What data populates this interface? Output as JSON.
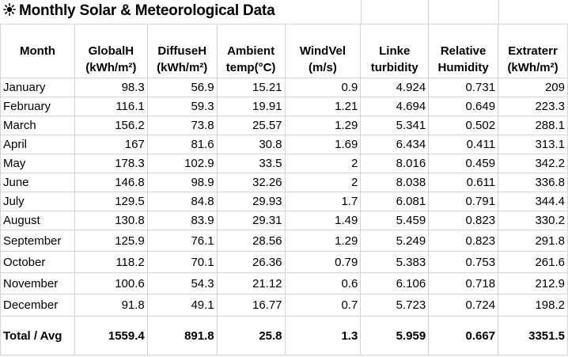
{
  "title": {
    "icon": "sun-icon",
    "text": "Monthly Solar & Meteorological Data"
  },
  "columns": [
    {
      "line1": "Month",
      "line2": ""
    },
    {
      "line1": "GlobalH",
      "line2": "(kWh/m²)"
    },
    {
      "line1": "DiffuseH",
      "line2": "(kWh/m²)"
    },
    {
      "line1": "Ambient",
      "line2": "temp(°C)"
    },
    {
      "line1": "WindVel",
      "line2": "(m/s)"
    },
    {
      "line1": "Linke",
      "line2": "turbidity"
    },
    {
      "line1": "Relative",
      "line2": "Humidity"
    },
    {
      "line1": "Extraterr",
      "line2": "(kWh/m²)"
    }
  ],
  "rows": [
    [
      "January",
      "98.3",
      "56.9",
      "15.21",
      "0.9",
      "4.924",
      "0.731",
      "209"
    ],
    [
      "February",
      "116.1",
      "59.3",
      "19.91",
      "1.21",
      "4.694",
      "0.649",
      "223.3"
    ],
    [
      "March",
      "156.2",
      "73.8",
      "25.57",
      "1.29",
      "5.341",
      "0.502",
      "288.1"
    ],
    [
      "April",
      "167",
      "81.6",
      "30.8",
      "1.69",
      "6.434",
      "0.411",
      "313.1"
    ],
    [
      "May",
      "178.3",
      "102.9",
      "33.5",
      "2",
      "8.016",
      "0.459",
      "342.2"
    ],
    [
      "June",
      "146.8",
      "98.9",
      "32.26",
      "2",
      "8.038",
      "0.611",
      "336.8"
    ],
    [
      "July",
      "129.5",
      "84.8",
      "29.93",
      "1.7",
      "6.081",
      "0.791",
      "344.4"
    ],
    [
      "August",
      "130.8",
      "83.9",
      "29.31",
      "1.49",
      "5.459",
      "0.823",
      "330.2"
    ],
    [
      "September",
      "125.9",
      "76.1",
      "28.56",
      "1.29",
      "5.249",
      "0.823",
      "291.8"
    ],
    [
      "October",
      "118.2",
      "70.1",
      "26.36",
      "0.79",
      "5.383",
      "0.753",
      "261.6"
    ],
    [
      "November",
      "100.6",
      "54.3",
      "21.12",
      "0.6",
      "6.106",
      "0.718",
      "212.9"
    ],
    [
      "December",
      "91.8",
      "49.1",
      "16.77",
      "0.7",
      "5.723",
      "0.724",
      "198.2"
    ]
  ],
  "total": [
    "Total / Avg",
    "1559.4",
    "891.8",
    "25.8",
    "1.3",
    "5.959",
    "0.667",
    "3351.5"
  ]
}
